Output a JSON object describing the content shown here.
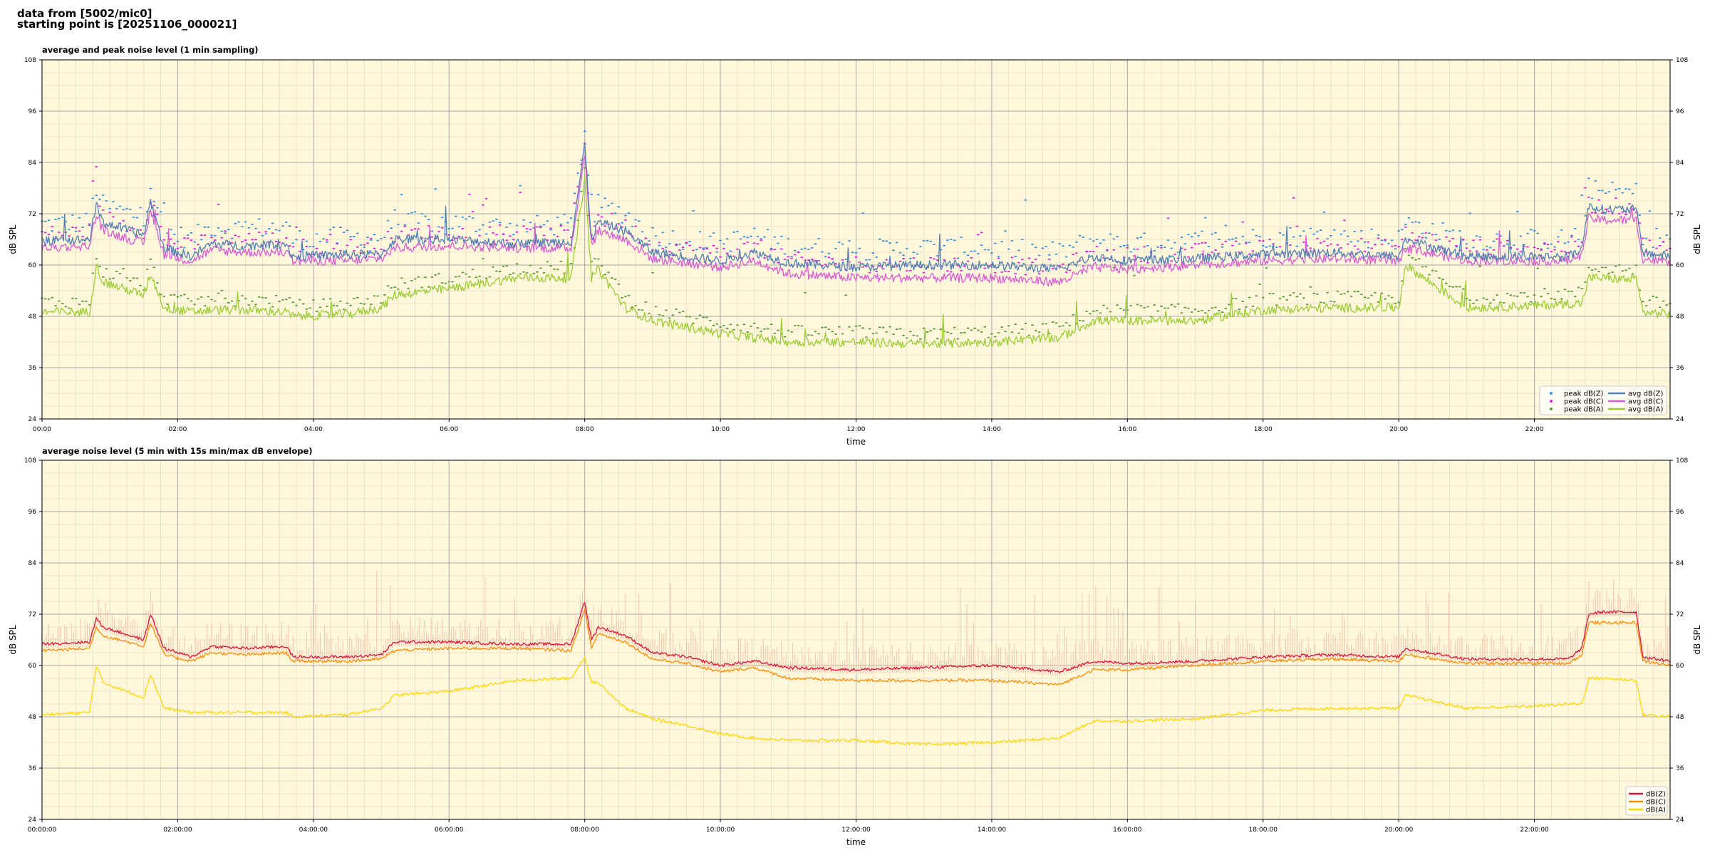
{
  "header": {
    "line1": "data from [5002/mic0]",
    "line2": "starting point is [20251106_000021]"
  },
  "colors": {
    "background": "#fff8dc",
    "grid_major": "#a9a9a9",
    "grid_minor": "#e6dbc0",
    "avg_z": "#4f7fb4",
    "avg_c": "#d95bd4",
    "avg_a": "#9acd32",
    "peak_z": "#3b8fd6",
    "peak_c": "#e020d8",
    "peak_a": "#5a9a3a",
    "dbz": "#dc143c",
    "dbc": "#ff8c00",
    "dba": "#ffd700",
    "envelope": "#f4b8a0"
  },
  "chart_data": [
    {
      "type": "line",
      "title": "average and peak noise level (1 min sampling)",
      "xlabel": "time",
      "ylabel": "dB SPL",
      "ylim": [
        24,
        108
      ],
      "yticks": [
        "24",
        "36",
        "48",
        "60",
        "72",
        "84",
        "96",
        "108"
      ],
      "xlim_hours": [
        0,
        24
      ],
      "xticks": [
        "00:00",
        "02:00",
        "04:00",
        "06:00",
        "08:00",
        "10:00",
        "12:00",
        "14:00",
        "16:00",
        "18:00",
        "20:00",
        "22:00"
      ],
      "grid": true,
      "legend_position": "bottom-right",
      "legend": [
        "peak dB(Z)",
        "peak dB(C)",
        "peak dB(A)",
        "avg dB(Z)",
        "avg dB(C)",
        "avg dB(A)"
      ],
      "x": [
        0,
        0.7,
        0.8,
        0.9,
        1.5,
        1.6,
        1.8,
        2.2,
        2.5,
        3.0,
        3.6,
        3.7,
        4.5,
        5.0,
        5.2,
        6.0,
        7.0,
        7.8,
        8.0,
        8.1,
        8.2,
        8.6,
        9.0,
        9.5,
        10.0,
        10.5,
        11.0,
        12.0,
        13.0,
        14.0,
        15.0,
        15.5,
        16.0,
        17.0,
        18.0,
        19.0,
        20.0,
        20.1,
        21.0,
        22.0,
        22.5,
        22.7,
        22.8,
        23.0,
        23.5,
        23.6,
        24.0
      ],
      "series": [
        {
          "name": "avg dB(Z)",
          "values": [
            65.5,
            66,
            74,
            70,
            67,
            75,
            64,
            62,
            65,
            64.5,
            65,
            62,
            62.5,
            62.5,
            66,
            66,
            65,
            65.5,
            88,
            66,
            70,
            68,
            63,
            62,
            61,
            63,
            60.5,
            59.5,
            60,
            60,
            59,
            62,
            61,
            61.5,
            62.5,
            63,
            62,
            66,
            62,
            62,
            62,
            64,
            74,
            73,
            73,
            63,
            62
          ]
        },
        {
          "name": "avg dB(C)",
          "values": [
            64,
            64.5,
            72,
            68,
            65,
            73,
            62.5,
            61,
            63.5,
            63,
            63,
            61,
            61,
            61.5,
            64,
            64.5,
            64,
            64,
            86,
            64.5,
            68,
            66,
            61.5,
            60.5,
            59.5,
            61,
            58,
            57,
            57,
            57,
            56,
            59.5,
            59,
            60,
            61,
            61.5,
            61,
            64,
            61,
            61,
            61,
            62.5,
            71,
            70.5,
            70.5,
            61.5,
            60.5
          ]
        },
        {
          "name": "avg dB(A)",
          "values": [
            49,
            49,
            60,
            56,
            53,
            58,
            50,
            49,
            49.5,
            49.5,
            49,
            48,
            48.5,
            50,
            53,
            54.5,
            57,
            57,
            80,
            57,
            59,
            50,
            47,
            45.5,
            44,
            43,
            42,
            42,
            41.5,
            42,
            43,
            47,
            47,
            47,
            49.5,
            50,
            50,
            60,
            50,
            50.5,
            51,
            51,
            57,
            57,
            56.5,
            49,
            48.5
          ]
        }
      ],
      "peak_offsets_db": {
        "peak dB(Z)": 5,
        "peak dB(C)": 4,
        "peak dB(A)": 3
      }
    },
    {
      "type": "line",
      "title": "average noise level (5 min with 15s min/max dB envelope)",
      "xlabel": "time",
      "ylabel": "dB SPL",
      "ylim": [
        24,
        108
      ],
      "yticks": [
        "24",
        "36",
        "48",
        "60",
        "72",
        "84",
        "96",
        "108"
      ],
      "xlim_hours": [
        0,
        24
      ],
      "xticks": [
        "00:00:00",
        "02:00:00",
        "04:00:00",
        "06:00:00",
        "08:00:00",
        "10:00:00",
        "12:00:00",
        "14:00:00",
        "16:00:00",
        "18:00:00",
        "20:00:00",
        "22:00:00"
      ],
      "grid": true,
      "legend_position": "bottom-right",
      "legend": [
        "dB(Z)",
        "dB(C)",
        "dB(A)"
      ],
      "x": [
        0,
        0.7,
        0.8,
        0.9,
        1.5,
        1.6,
        1.8,
        2.2,
        2.5,
        3.0,
        3.6,
        3.7,
        4.5,
        5.0,
        5.2,
        6.0,
        7.0,
        7.8,
        8.0,
        8.1,
        8.2,
        8.6,
        9.0,
        9.5,
        10.0,
        10.5,
        11.0,
        12.0,
        13.0,
        14.0,
        15.0,
        15.5,
        16.0,
        17.0,
        18.0,
        19.0,
        20.0,
        20.1,
        21.0,
        22.0,
        22.5,
        22.7,
        22.8,
        23.0,
        23.5,
        23.6,
        24.0
      ],
      "series": [
        {
          "name": "dB(Z)",
          "values": [
            65,
            65.5,
            71,
            69,
            66,
            72,
            64,
            62,
            64.5,
            64,
            64.5,
            62,
            62,
            62.5,
            65.5,
            65.5,
            65,
            65,
            75,
            66,
            69,
            67,
            63,
            62,
            60,
            61,
            59.5,
            59,
            59.5,
            60,
            58.5,
            61,
            60.5,
            61,
            62,
            62.5,
            62,
            64,
            61.5,
            61.5,
            61.5,
            64,
            72,
            72.5,
            72.5,
            62,
            61
          ]
        },
        {
          "name": "dB(C)",
          "values": [
            63.5,
            64,
            69,
            67,
            64.5,
            70,
            62.5,
            61,
            63,
            62.5,
            63,
            61,
            61,
            61.5,
            63.5,
            64,
            64,
            63.5,
            73,
            64,
            67.5,
            65.5,
            61.5,
            60.5,
            58.5,
            59.5,
            57,
            56.5,
            56.5,
            56.5,
            55.5,
            59,
            59,
            60,
            61,
            61.5,
            61,
            62.5,
            60.5,
            60.5,
            60.5,
            62.5,
            70,
            70,
            70,
            61,
            60
          ]
        },
        {
          "name": "dB(A)",
          "values": [
            48.5,
            49,
            60,
            56,
            52.5,
            58,
            50,
            49,
            49,
            49,
            49,
            48,
            48.5,
            50,
            53,
            54,
            56.5,
            57,
            62,
            56,
            56,
            50,
            47.5,
            46,
            44,
            43,
            42.5,
            42.5,
            41.5,
            42,
            43,
            47,
            47,
            47.5,
            49.5,
            50,
            50,
            53,
            50,
            50.5,
            51,
            51,
            57,
            57,
            56.5,
            48.5,
            48
          ]
        }
      ],
      "envelope_max_offset_db": 6
    }
  ]
}
